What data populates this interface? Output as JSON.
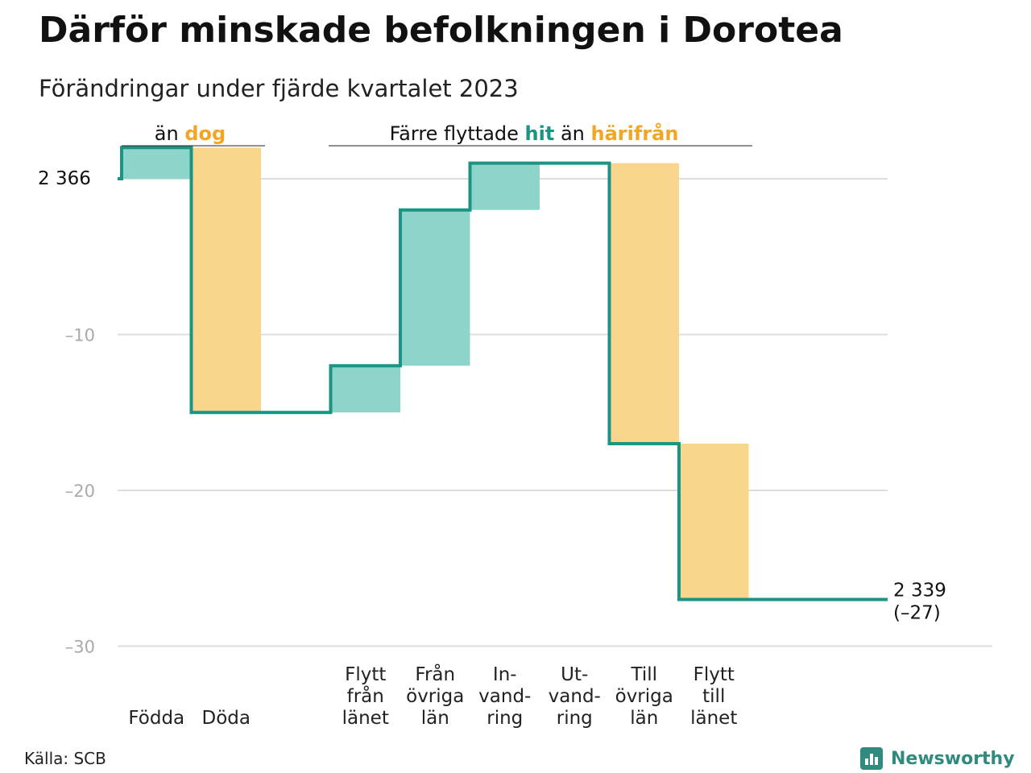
{
  "title": "Därför minskade befolkningen i Dorotea",
  "subtitle": "Förändringar under fjärde kvartalet 2023",
  "source": "Källa: SCB",
  "brand": {
    "name": "Newsworthy",
    "icon": "newsworthy-logo-icon"
  },
  "colors": {
    "increase": "#8dd5cb",
    "decrease": "#fad58e",
    "step_line": "#1a9483",
    "grid": "#dddddd",
    "tick_text": "#aaaaaa",
    "annot_hit": "#1a9483",
    "annot_harifran": "#f2a623",
    "annot_dog": "#f2a623",
    "brand": "#2e8b7d"
  },
  "annotations": {
    "births_vs_deaths": {
      "prefix": "än",
      "highlight": "dog"
    },
    "migration": {
      "prefix": "Färre flyttade",
      "highlight1": "hit",
      "middle": "än",
      "highlight2": "härifrån"
    }
  },
  "chart_data": {
    "type": "waterfall",
    "start_label": "2 366",
    "end_label": [
      "2 339",
      "(–27)"
    ],
    "ylim": [
      -30,
      2
    ],
    "yticks": [
      {
        "value": 0,
        "label": "2 366"
      },
      {
        "value": -10,
        "label": "–10"
      },
      {
        "value": -20,
        "label": "–20"
      },
      {
        "value": -30,
        "label": "–30"
      }
    ],
    "steps": [
      {
        "category": [
          "Födda"
        ],
        "change": 2
      },
      {
        "category": [
          "Döda"
        ],
        "change": -17
      },
      {
        "category": [
          ""
        ],
        "change": 0
      },
      {
        "category": [
          "Flytt",
          "från",
          "länet"
        ],
        "change": 3
      },
      {
        "category": [
          "Från",
          "övriga",
          "län"
        ],
        "change": 10
      },
      {
        "category": [
          "In-",
          "vand-",
          "ring"
        ],
        "change": 3
      },
      {
        "category": [
          "Ut-",
          "vand-",
          "ring"
        ],
        "change": 0
      },
      {
        "category": [
          "Till",
          "övriga",
          "län"
        ],
        "change": -18
      },
      {
        "category": [
          "Flytt",
          "till",
          "länet"
        ],
        "change": -10
      }
    ],
    "final_change": -27
  }
}
